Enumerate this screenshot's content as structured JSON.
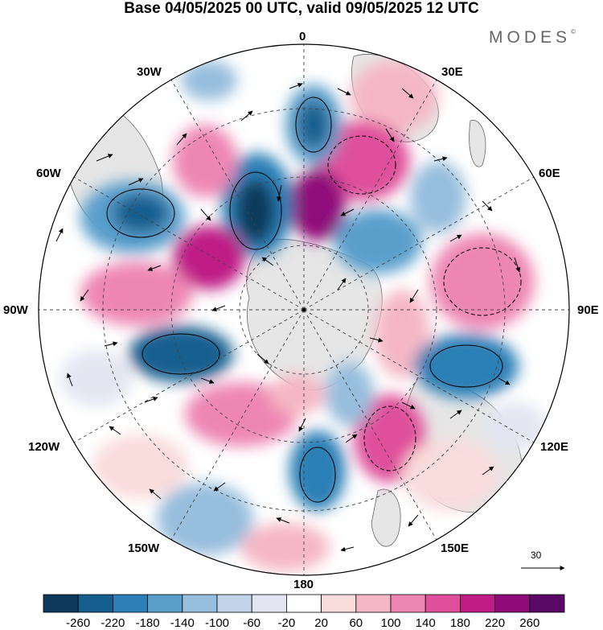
{
  "title": "Base 04/05/2025 00 UTC, valid 09/05/2025 12 UTC",
  "brand": "MODES",
  "brand_mark": "©",
  "longitude_labels": [
    "0",
    "30E",
    "60E",
    "90E",
    "120E",
    "150E",
    "180",
    "150W",
    "120W",
    "90W",
    "60W",
    "30W"
  ],
  "reference_vector": {
    "value": "30"
  },
  "colorbar": {
    "ticks": [
      "-260",
      "-220",
      "-180",
      "-140",
      "-100",
      "-60",
      "-20",
      "20",
      "60",
      "100",
      "140",
      "180",
      "220",
      "260"
    ],
    "colors": [
      "#0d3a5c",
      "#155f8f",
      "#2b7fb6",
      "#5a9fcc",
      "#97bedd",
      "#c2d4ea",
      "#e3e6f2",
      "#ffffff",
      "#f9dcdc",
      "#f5b7c5",
      "#ee86b4",
      "#df4f9b",
      "#bf1c86",
      "#8f0a7a",
      "#5a0a66"
    ]
  },
  "colors": {
    "land": "#e6e6e6",
    "coast": "#666666",
    "grid": "#444444"
  }
}
